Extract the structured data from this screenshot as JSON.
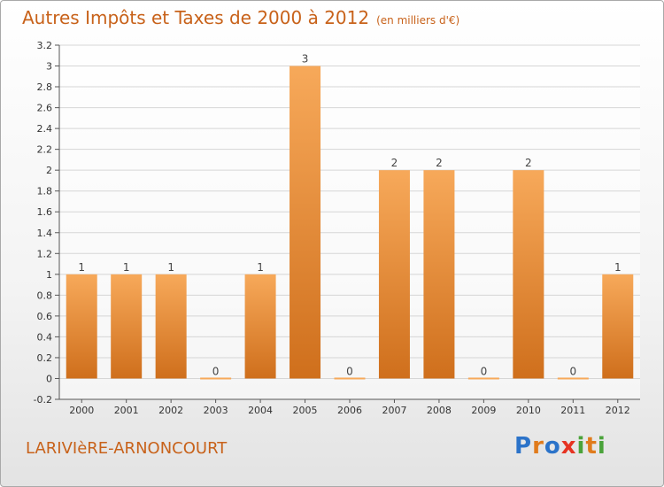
{
  "title": "Autres Impôts et Taxes de 2000 à 2012",
  "subtitle": "(en milliers d'€)",
  "commune": "LARIVIèRE-ARNONCOURT",
  "logo": {
    "text": "Proxiti",
    "letters": [
      {
        "ch": "P",
        "color": "#2b73c9"
      },
      {
        "ch": "r",
        "color": "#e07b1c"
      },
      {
        "ch": "o",
        "color": "#2b73c9"
      },
      {
        "ch": "x",
        "color": "#e63322"
      },
      {
        "ch": "i",
        "color": "#4aa33a"
      },
      {
        "ch": "t",
        "color": "#e07b1c"
      },
      {
        "ch": "i",
        "color": "#4aa33a"
      }
    ]
  },
  "colors": {
    "bar_top": "#f7a95a",
    "bar_bottom": "#cf6f1c",
    "title": "#c8621a",
    "grid": "#d6d6d6"
  },
  "chart_data": {
    "type": "bar",
    "categories": [
      "2000",
      "2001",
      "2002",
      "2003",
      "2004",
      "2005",
      "2006",
      "2007",
      "2008",
      "2009",
      "2010",
      "2011",
      "2012"
    ],
    "values": [
      1,
      1,
      1,
      0,
      1,
      3,
      0,
      2,
      2,
      0,
      2,
      0,
      1
    ],
    "data_labels": [
      "1",
      "1",
      "1",
      "0",
      "1",
      "3",
      "0",
      "2",
      "2",
      "0",
      "2",
      "0",
      "1"
    ],
    "ylim": [
      -0.2,
      3.2
    ],
    "yticks": [
      {
        "v": 3.2,
        "t": "3.2"
      },
      {
        "v": 3.0,
        "t": "3"
      },
      {
        "v": 2.8,
        "t": "2.8"
      },
      {
        "v": 2.6,
        "t": "2.6"
      },
      {
        "v": 2.4,
        "t": "2.4"
      },
      {
        "v": 2.2,
        "t": "2.2"
      },
      {
        "v": 2.0,
        "t": "2"
      },
      {
        "v": 1.8,
        "t": "1.8"
      },
      {
        "v": 1.6,
        "t": "1.6"
      },
      {
        "v": 1.4,
        "t": "1.4"
      },
      {
        "v": 1.2,
        "t": "1.2"
      },
      {
        "v": 1.0,
        "t": "1"
      },
      {
        "v": 0.8,
        "t": "0.8"
      },
      {
        "v": 0.6,
        "t": "0.6"
      },
      {
        "v": 0.4,
        "t": "0.4"
      },
      {
        "v": 0.2,
        "t": "0.2"
      },
      {
        "v": 0.0,
        "t": "0"
      },
      {
        "v": -0.2,
        "t": "-0.2"
      }
    ],
    "grid": true,
    "legend": "none"
  }
}
